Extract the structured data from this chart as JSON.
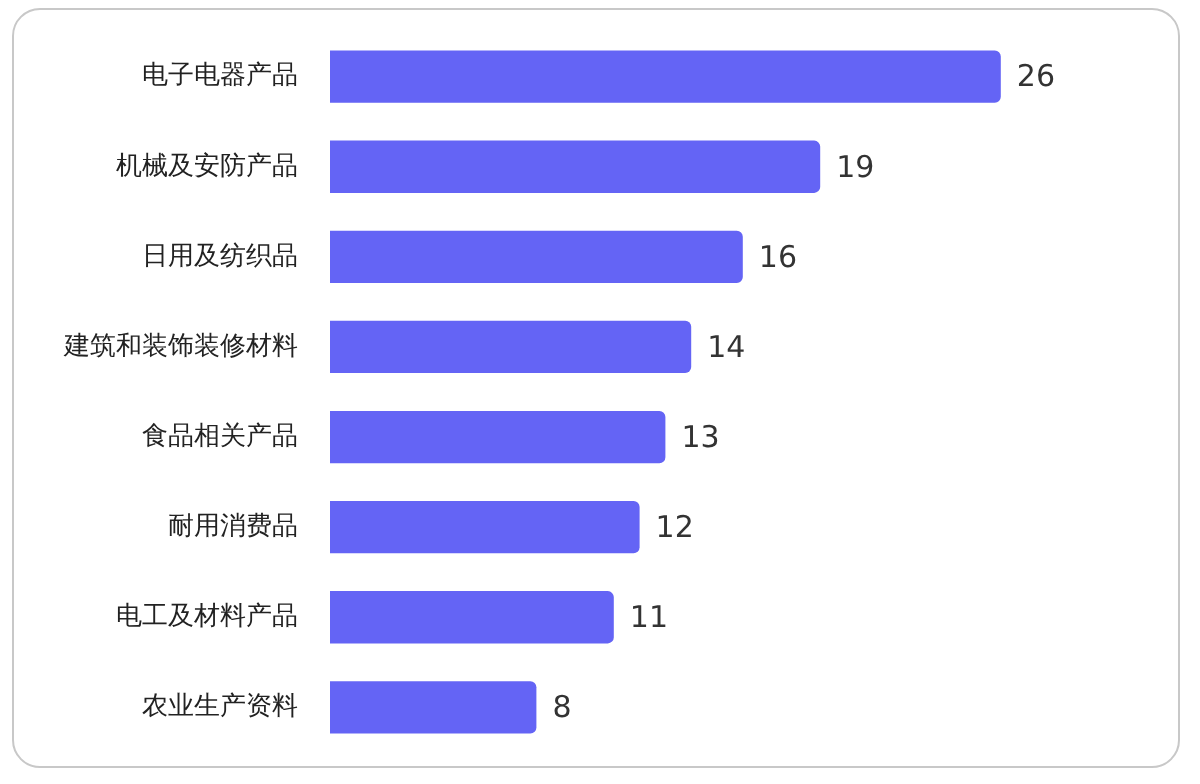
{
  "chart_data": {
    "type": "bar",
    "orientation": "horizontal",
    "data_labels": true,
    "categories": [
      "电子电器产品",
      "机械及安防产品",
      "日用及纺织品",
      "建筑和装饰装修材料",
      "食品相关产品",
      "耐用消费品",
      "电工及材料产品",
      "农业生产资料"
    ],
    "values": [
      26,
      19,
      16,
      14,
      13,
      12,
      11,
      8
    ],
    "color": "#6464f5"
  }
}
